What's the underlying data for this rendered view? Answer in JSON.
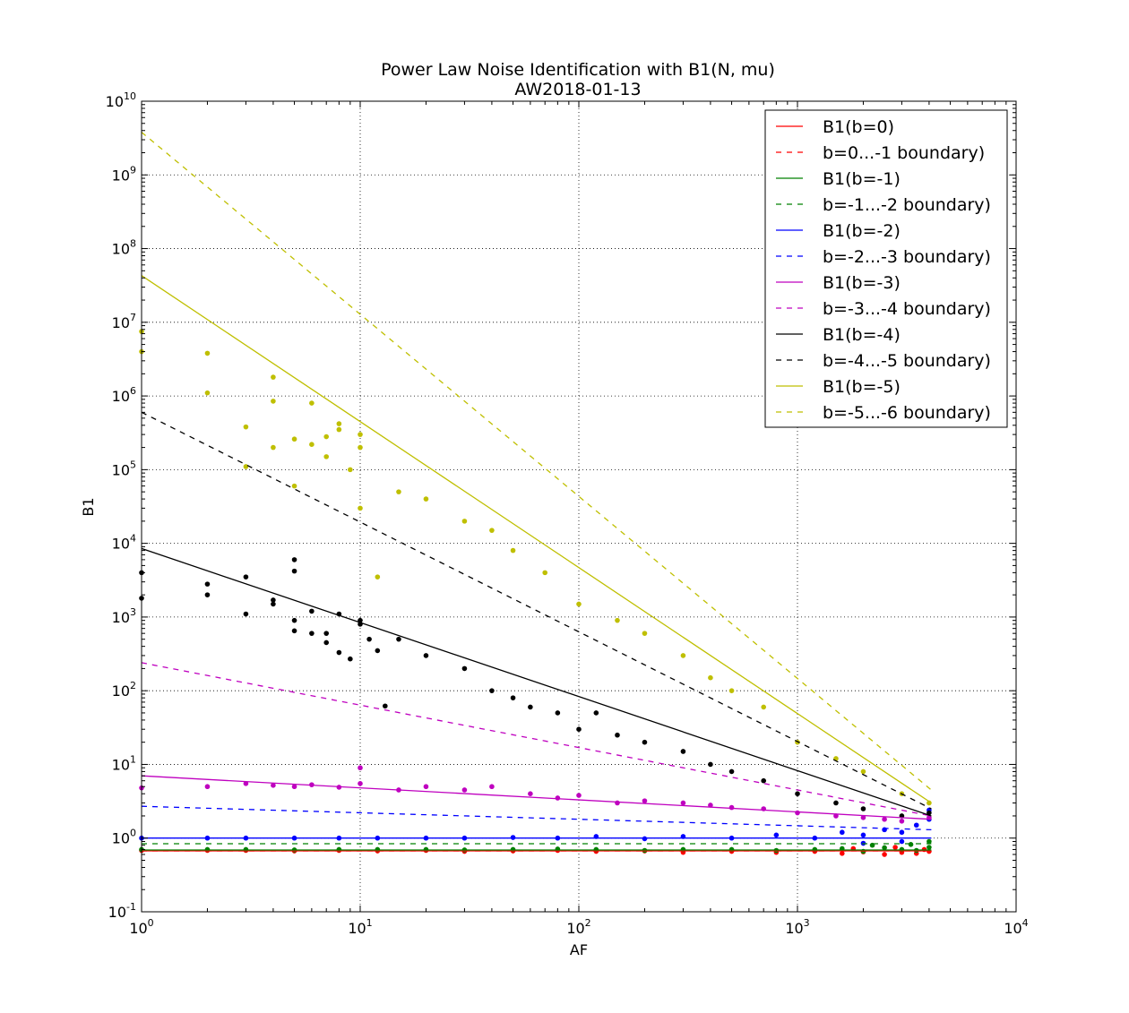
{
  "chart_data": {
    "type": "scatter",
    "title": "Power Law Noise Identification with B1(N, mu)",
    "subtitle": "AW2018-01-13",
    "xlabel": "AF",
    "ylabel": "B1",
    "xscale": "log",
    "yscale": "log",
    "xlim": [
      1,
      10000
    ],
    "ylim": [
      0.1,
      10000000000
    ],
    "x_ticks": [
      {
        "base": "10",
        "exp": "0",
        "value": 1
      },
      {
        "base": "10",
        "exp": "1",
        "value": 10
      },
      {
        "base": "10",
        "exp": "2",
        "value": 100
      },
      {
        "base": "10",
        "exp": "3",
        "value": 1000
      },
      {
        "base": "10",
        "exp": "4",
        "value": 10000
      }
    ],
    "y_ticks": [
      {
        "base": "10",
        "exp": "-1",
        "value": 0.1
      },
      {
        "base": "10",
        "exp": "0",
        "value": 1
      },
      {
        "base": "10",
        "exp": "1",
        "value": 10
      },
      {
        "base": "10",
        "exp": "2",
        "value": 100
      },
      {
        "base": "10",
        "exp": "3",
        "value": 1000
      },
      {
        "base": "10",
        "exp": "4",
        "value": 10000
      },
      {
        "base": "10",
        "exp": "5",
        "value": 100000
      },
      {
        "base": "10",
        "exp": "6",
        "value": 1000000
      },
      {
        "base": "10",
        "exp": "7",
        "value": 10000000
      },
      {
        "base": "10",
        "exp": "8",
        "value": 100000000
      },
      {
        "base": "10",
        "exp": "9",
        "value": 1000000000
      },
      {
        "base": "10",
        "exp": "10",
        "value": 10000000000
      }
    ],
    "grid": true,
    "legend_position": "top-right",
    "lines": [
      {
        "name": "B1(b=0)",
        "color": "#ff0000",
        "dash": "solid",
        "x": [
          1,
          4096
        ],
        "y": [
          0.67,
          0.67
        ]
      },
      {
        "name": "b=0...-1 boundary)",
        "color": "#ff0000",
        "dash": "dashed",
        "x": [
          1,
          4096
        ],
        "y": [
          0.67,
          0.67
        ]
      },
      {
        "name": "B1(b=-1)",
        "color": "#008000",
        "dash": "solid",
        "x": [
          1,
          4096
        ],
        "y": [
          0.69,
          0.69
        ]
      },
      {
        "name": "b=-1...-2 boundary)",
        "color": "#008000",
        "dash": "dashed",
        "x": [
          1,
          4096
        ],
        "y": [
          0.84,
          0.84
        ]
      },
      {
        "name": "B1(b=-2)",
        "color": "#0000ff",
        "dash": "solid",
        "x": [
          1,
          4096
        ],
        "y": [
          1.0,
          1.0
        ]
      },
      {
        "name": "b=-2...-3 boundary)",
        "color": "#0000ff",
        "dash": "dashed",
        "x": [
          1,
          4096
        ],
        "y": [
          2.7,
          1.3
        ]
      },
      {
        "name": "B1(b=-3)",
        "color": "#bf00bf",
        "dash": "solid",
        "x": [
          1,
          4096
        ],
        "y": [
          7.0,
          1.8
        ]
      },
      {
        "name": "b=-3...-4 boundary)",
        "color": "#bf00bf",
        "dash": "dashed",
        "x": [
          1,
          4096
        ],
        "y": [
          240,
          2.0
        ]
      },
      {
        "name": "B1(b=-4)",
        "color": "#000000",
        "dash": "solid",
        "x": [
          1,
          4096
        ],
        "y": [
          8500,
          2.0
        ]
      },
      {
        "name": "b=-4...-5 boundary)",
        "color": "#000000",
        "dash": "dashed",
        "x": [
          1,
          4096
        ],
        "y": [
          600000,
          2.5
        ]
      },
      {
        "name": "B1(b=-5)",
        "color": "#bfbf00",
        "dash": "solid",
        "x": [
          1,
          4096
        ],
        "y": [
          43000000,
          3.0
        ]
      },
      {
        "name": "b=-5...-6 boundary)",
        "color": "#bfbf00",
        "dash": "dashed",
        "x": [
          1,
          4096
        ],
        "y": [
          3800000000,
          4.5
        ]
      }
    ],
    "point_series": [
      {
        "color": "#ff0000",
        "points": [
          [
            1,
            0.68
          ],
          [
            2,
            0.68
          ],
          [
            3,
            0.68
          ],
          [
            5,
            0.67
          ],
          [
            8,
            0.68
          ],
          [
            12,
            0.67
          ],
          [
            20,
            0.68
          ],
          [
            30,
            0.66
          ],
          [
            50,
            0.67
          ],
          [
            80,
            0.68
          ],
          [
            120,
            0.66
          ],
          [
            200,
            0.67
          ],
          [
            300,
            0.64
          ],
          [
            500,
            0.66
          ],
          [
            800,
            0.64
          ],
          [
            1200,
            0.66
          ],
          [
            1600,
            0.62
          ],
          [
            2000,
            0.65
          ],
          [
            2500,
            0.6
          ],
          [
            3000,
            0.64
          ],
          [
            3500,
            0.62
          ],
          [
            4000,
            0.66
          ],
          [
            1800,
            0.72
          ],
          [
            2800,
            0.75
          ],
          [
            3800,
            0.7
          ]
        ]
      },
      {
        "color": "#008000",
        "points": [
          [
            1,
            0.7
          ],
          [
            2,
            0.7
          ],
          [
            3,
            0.7
          ],
          [
            5,
            0.69
          ],
          [
            8,
            0.7
          ],
          [
            12,
            0.7
          ],
          [
            20,
            0.7
          ],
          [
            30,
            0.69
          ],
          [
            50,
            0.7
          ],
          [
            80,
            0.71
          ],
          [
            120,
            0.7
          ],
          [
            200,
            0.68
          ],
          [
            300,
            0.7
          ],
          [
            500,
            0.7
          ],
          [
            800,
            0.68
          ],
          [
            1200,
            0.7
          ],
          [
            1600,
            0.72
          ],
          [
            2000,
            0.66
          ],
          [
            2500,
            0.74
          ],
          [
            3000,
            0.7
          ],
          [
            3500,
            0.68
          ],
          [
            4000,
            0.75
          ],
          [
            2200,
            0.8
          ],
          [
            3300,
            0.82
          ],
          [
            4000,
            0.9
          ]
        ]
      },
      {
        "color": "#0000ff",
        "points": [
          [
            1,
            1.0
          ],
          [
            2,
            1.0
          ],
          [
            3,
            1.0
          ],
          [
            5,
            1.0
          ],
          [
            8,
            1.0
          ],
          [
            12,
            1.0
          ],
          [
            20,
            1.0
          ],
          [
            30,
            1.0
          ],
          [
            50,
            1.02
          ],
          [
            80,
            1.0
          ],
          [
            120,
            1.05
          ],
          [
            200,
            0.98
          ],
          [
            300,
            1.05
          ],
          [
            500,
            1.0
          ],
          [
            800,
            1.1
          ],
          [
            1200,
            1.0
          ],
          [
            1600,
            1.2
          ],
          [
            2000,
            1.1
          ],
          [
            2500,
            1.3
          ],
          [
            3000,
            1.2
          ],
          [
            3500,
            1.5
          ],
          [
            4000,
            1.8
          ],
          [
            4000,
            2.4
          ],
          [
            3000,
            0.9
          ],
          [
            2000,
            0.85
          ]
        ]
      },
      {
        "color": "#bf00bf",
        "points": [
          [
            1,
            4.8
          ],
          [
            2,
            5.0
          ],
          [
            3,
            5.5
          ],
          [
            4,
            5.2
          ],
          [
            5,
            5.0
          ],
          [
            6,
            5.3
          ],
          [
            8,
            4.9
          ],
          [
            10,
            5.5
          ],
          [
            10,
            9.0
          ],
          [
            15,
            4.5
          ],
          [
            20,
            5.0
          ],
          [
            30,
            4.5
          ],
          [
            40,
            5.0
          ],
          [
            60,
            4.0
          ],
          [
            80,
            3.5
          ],
          [
            100,
            3.8
          ],
          [
            150,
            3.0
          ],
          [
            200,
            3.2
          ],
          [
            300,
            3.0
          ],
          [
            400,
            2.8
          ],
          [
            500,
            2.6
          ],
          [
            700,
            2.5
          ],
          [
            1000,
            2.2
          ],
          [
            1500,
            2.0
          ],
          [
            2000,
            1.9
          ],
          [
            2500,
            1.8
          ],
          [
            3000,
            1.7
          ],
          [
            4000,
            1.9
          ]
        ]
      },
      {
        "color": "#000000",
        "points": [
          [
            1,
            4000
          ],
          [
            1,
            1800
          ],
          [
            2,
            2800
          ],
          [
            2,
            2000
          ],
          [
            3,
            3500
          ],
          [
            3,
            1100
          ],
          [
            4,
            1500
          ],
          [
            4,
            1700
          ],
          [
            5,
            6000
          ],
          [
            5,
            4200
          ],
          [
            5,
            900
          ],
          [
            5,
            650
          ],
          [
            6,
            1200
          ],
          [
            6,
            600
          ],
          [
            7,
            600
          ],
          [
            7,
            450
          ],
          [
            8,
            1100
          ],
          [
            8,
            330
          ],
          [
            9,
            270
          ],
          [
            10,
            900
          ],
          [
            10,
            800
          ],
          [
            11,
            500
          ],
          [
            12,
            350
          ],
          [
            13,
            62
          ],
          [
            15,
            500
          ],
          [
            20,
            300
          ],
          [
            30,
            200
          ],
          [
            40,
            100
          ],
          [
            50,
            80
          ],
          [
            60,
            60
          ],
          [
            80,
            50
          ],
          [
            100,
            30
          ],
          [
            120,
            50
          ],
          [
            150,
            25
          ],
          [
            200,
            20
          ],
          [
            300,
            15
          ],
          [
            400,
            10
          ],
          [
            500,
            8
          ],
          [
            700,
            6
          ],
          [
            1000,
            4
          ],
          [
            1500,
            3
          ],
          [
            2000,
            2.5
          ],
          [
            3000,
            2
          ],
          [
            4000,
            2.2
          ]
        ]
      },
      {
        "color": "#bfbf00",
        "points": [
          [
            1,
            7500000
          ],
          [
            1,
            4000000
          ],
          [
            2,
            3800000
          ],
          [
            2,
            1100000
          ],
          [
            3,
            380000
          ],
          [
            3,
            110000
          ],
          [
            4,
            1800000
          ],
          [
            4,
            850000
          ],
          [
            4,
            200000
          ],
          [
            5,
            260000
          ],
          [
            5,
            60000
          ],
          [
            6,
            800000
          ],
          [
            6,
            220000
          ],
          [
            7,
            280000
          ],
          [
            7,
            150000
          ],
          [
            8,
            420000
          ],
          [
            8,
            350000
          ],
          [
            9,
            100000
          ],
          [
            10,
            300000
          ],
          [
            10,
            200000
          ],
          [
            10,
            30000
          ],
          [
            12,
            3500
          ],
          [
            15,
            50000
          ],
          [
            20,
            40000
          ],
          [
            30,
            20000
          ],
          [
            40,
            15000
          ],
          [
            50,
            8000
          ],
          [
            70,
            4000
          ],
          [
            100,
            1500
          ],
          [
            150,
            900
          ],
          [
            200,
            600
          ],
          [
            300,
            300
          ],
          [
            400,
            150
          ],
          [
            500,
            100
          ],
          [
            700,
            60
          ],
          [
            1000,
            20
          ],
          [
            1500,
            12
          ],
          [
            2000,
            8
          ],
          [
            3000,
            4
          ],
          [
            4000,
            3
          ]
        ]
      }
    ],
    "legend": [
      {
        "label": "B1(b=0)",
        "color": "#ff0000",
        "dash": "solid"
      },
      {
        "label": "b=0...-1 boundary)",
        "color": "#ff0000",
        "dash": "dashed"
      },
      {
        "label": "B1(b=-1)",
        "color": "#008000",
        "dash": "solid"
      },
      {
        "label": "b=-1...-2 boundary)",
        "color": "#008000",
        "dash": "dashed"
      },
      {
        "label": "B1(b=-2)",
        "color": "#0000ff",
        "dash": "solid"
      },
      {
        "label": "b=-2...-3 boundary)",
        "color": "#0000ff",
        "dash": "dashed"
      },
      {
        "label": "B1(b=-3)",
        "color": "#bf00bf",
        "dash": "solid"
      },
      {
        "label": "b=-3...-4 boundary)",
        "color": "#bf00bf",
        "dash": "dashed"
      },
      {
        "label": "B1(b=-4)",
        "color": "#000000",
        "dash": "solid"
      },
      {
        "label": "b=-4...-5 boundary)",
        "color": "#000000",
        "dash": "dashed"
      },
      {
        "label": "B1(b=-5)",
        "color": "#bfbf00",
        "dash": "solid"
      },
      {
        "label": "b=-5...-6 boundary)",
        "color": "#bfbf00",
        "dash": "dashed"
      }
    ]
  }
}
